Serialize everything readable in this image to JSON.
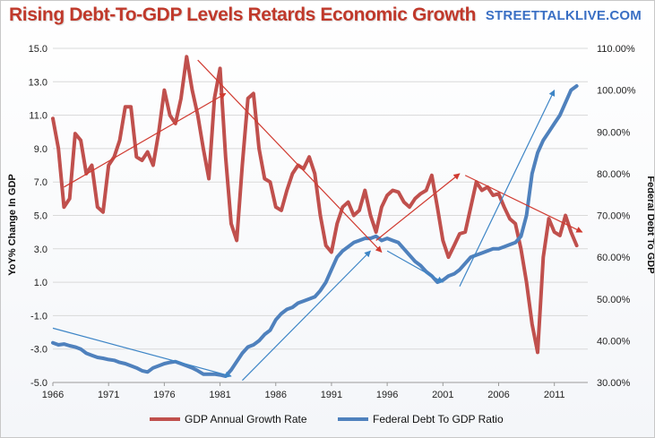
{
  "header": {
    "title": "Rising Debt-To-GDP Levels Retards Economic Growth",
    "brand": "STREETTALKLIVE.COM"
  },
  "chart_data": {
    "type": "line",
    "title": "Rising Debt-To-GDP Levels Retards Economic Growth",
    "ylabel_left": "YoY% Change In GDP",
    "ylabel_right": "Federal Debt To GDP",
    "xlim": [
      1966,
      2014
    ],
    "ylim_left": [
      -5,
      15
    ],
    "ylim_right": [
      30,
      110
    ],
    "x_ticks": [
      "1966",
      "1971",
      "1976",
      "1981",
      "1986",
      "1991",
      "1996",
      "2001",
      "2006",
      "2011"
    ],
    "y_left_ticks": [
      "-5.0",
      "-3.0",
      "-1.0",
      "1.0",
      "3.0",
      "5.0",
      "7.0",
      "9.0",
      "11.0",
      "13.0",
      "15.0"
    ],
    "y_right_ticks": [
      "30.00%",
      "40.00%",
      "50.00%",
      "60.00%",
      "70.00%",
      "80.00%",
      "90.00%",
      "100.00%",
      "110.00%"
    ],
    "grid": "horizontal",
    "legend_position": "bottom",
    "colors": {
      "gdp": "#c0504d",
      "debt": "#4f81bd",
      "gdp_trend": "#d03a30",
      "debt_trend": "#3d85c6"
    },
    "series": [
      {
        "name": "GDP Annual Growth Rate",
        "axis": "left",
        "x": [
          1966,
          1966.5,
          1967,
          1967.5,
          1968,
          1968.5,
          1969,
          1969.5,
          1970,
          1970.5,
          1971,
          1971.5,
          1972,
          1972.5,
          1973,
          1973.5,
          1974,
          1974.5,
          1975,
          1975.5,
          1976,
          1976.5,
          1977,
          1977.5,
          1978,
          1978.5,
          1979,
          1979.5,
          1980,
          1980.5,
          1981,
          1981.5,
          1982,
          1982.5,
          1983,
          1983.5,
          1984,
          1984.5,
          1985,
          1985.5,
          1986,
          1986.5,
          1987,
          1987.5,
          1988,
          1988.5,
          1989,
          1989.5,
          1990,
          1990.5,
          1991,
          1991.5,
          1992,
          1992.5,
          1993,
          1993.5,
          1994,
          1994.5,
          1995,
          1995.5,
          1996,
          1996.5,
          1997,
          1997.5,
          1998,
          1998.5,
          1999,
          1999.5,
          2000,
          2000.5,
          2001,
          2001.5,
          2002,
          2002.5,
          2003,
          2003.5,
          2004,
          2004.5,
          2005,
          2005.5,
          2006,
          2006.5,
          2007,
          2007.5,
          2008,
          2008.5,
          2009,
          2009.5,
          2010,
          2010.5,
          2011,
          2011.5,
          2012,
          2012.5,
          2013
        ],
        "values": [
          10.8,
          9.0,
          5.5,
          6.0,
          9.9,
          9.5,
          7.5,
          8.0,
          5.5,
          5.2,
          8.0,
          8.5,
          9.5,
          11.5,
          11.5,
          8.5,
          8.3,
          8.8,
          8.0,
          10.0,
          12.5,
          11.0,
          10.5,
          12.0,
          14.5,
          12.5,
          11.0,
          9.0,
          7.2,
          12.0,
          13.8,
          8.5,
          4.5,
          3.5,
          8.0,
          12.0,
          12.3,
          9.0,
          7.2,
          7.0,
          5.5,
          5.3,
          6.5,
          7.5,
          8.0,
          7.8,
          8.5,
          7.5,
          5.0,
          3.2,
          2.8,
          4.5,
          5.5,
          5.8,
          5.0,
          5.3,
          6.5,
          5.0,
          4.0,
          5.5,
          6.2,
          6.5,
          6.4,
          5.8,
          5.5,
          6.0,
          6.3,
          6.5,
          7.4,
          5.5,
          3.5,
          2.5,
          3.2,
          3.9,
          4.0,
          5.5,
          7.0,
          6.5,
          6.7,
          6.2,
          6.3,
          5.5,
          4.8,
          4.5,
          3.0,
          1.0,
          -1.5,
          -3.2,
          2.5,
          4.8,
          4.0,
          3.8,
          5.0,
          4.0,
          3.2
        ]
      },
      {
        "name": "Federal Debt To GDP Ratio",
        "axis": "right",
        "x": [
          1966,
          1966.5,
          1967,
          1967.5,
          1968,
          1968.5,
          1969,
          1969.5,
          1970,
          1970.5,
          1971,
          1971.5,
          1972,
          1972.5,
          1973,
          1973.5,
          1974,
          1974.5,
          1975,
          1975.5,
          1976,
          1976.5,
          1977,
          1977.5,
          1978,
          1978.5,
          1979,
          1979.5,
          1980,
          1980.5,
          1981,
          1981.5,
          1982,
          1982.5,
          1983,
          1983.5,
          1984,
          1984.5,
          1985,
          1985.5,
          1986,
          1986.5,
          1987,
          1987.5,
          1988,
          1988.5,
          1989,
          1989.5,
          1990,
          1990.5,
          1991,
          1991.5,
          1992,
          1992.5,
          1993,
          1993.5,
          1994,
          1994.5,
          1995,
          1995.5,
          1996,
          1996.5,
          1997,
          1997.5,
          1998,
          1998.5,
          1999,
          1999.5,
          2000,
          2000.5,
          2001,
          2001.5,
          2002,
          2002.5,
          2003,
          2003.5,
          2004,
          2004.5,
          2005,
          2005.5,
          2006,
          2006.5,
          2007,
          2007.5,
          2008,
          2008.5,
          2009,
          2009.5,
          2010,
          2010.5,
          2011,
          2011.5,
          2012,
          2012.5,
          2013
        ],
        "values": [
          39.5,
          39.0,
          39.2,
          38.8,
          38.5,
          38.0,
          37.0,
          36.5,
          36.0,
          35.8,
          35.5,
          35.3,
          34.8,
          34.5,
          34.0,
          33.5,
          32.8,
          32.5,
          33.5,
          34.0,
          34.5,
          34.8,
          35.0,
          34.5,
          34.0,
          33.5,
          32.8,
          32.0,
          32.0,
          32.0,
          31.8,
          31.5,
          33.0,
          35.0,
          37.0,
          38.5,
          39.0,
          40.0,
          41.5,
          42.5,
          45.0,
          46.5,
          47.5,
          48.0,
          49.0,
          49.5,
          50.0,
          50.5,
          52.0,
          54.0,
          57.0,
          60.0,
          61.5,
          62.5,
          63.5,
          64.0,
          64.5,
          64.5,
          65.0,
          64.0,
          64.5,
          64.0,
          63.5,
          62.0,
          60.5,
          59.0,
          58.0,
          56.5,
          55.5,
          54.0,
          54.5,
          55.5,
          56.0,
          57.0,
          58.5,
          60.0,
          60.5,
          61.0,
          61.5,
          62.0,
          62.0,
          62.5,
          63.0,
          63.5,
          65.0,
          70.0,
          80.0,
          85.0,
          88.0,
          90.0,
          92.0,
          94.0,
          97.0,
          100.0,
          101.0
        ]
      }
    ],
    "trendlines": [
      {
        "series": "GDP Annual Growth Rate",
        "from": [
          1967,
          6.7
        ],
        "to": [
          1981.5,
          12.3
        ]
      },
      {
        "series": "GDP Annual Growth Rate",
        "from": [
          1979,
          14.3
        ],
        "to": [
          1995.5,
          2.8
        ]
      },
      {
        "series": "GDP Annual Growth Rate",
        "from": [
          1995,
          3.5
        ],
        "to": [
          2002.5,
          7.5
        ]
      },
      {
        "series": "GDP Annual Growth Rate",
        "from": [
          2003,
          7.4
        ],
        "to": [
          2013.5,
          4.0
        ]
      },
      {
        "series": "Federal Debt To GDP Ratio",
        "from": [
          1966,
          43.0
        ],
        "to": [
          1982,
          31.5
        ]
      },
      {
        "series": "Federal Debt To GDP Ratio",
        "from": [
          1983,
          30.5
        ],
        "to": [
          1994.5,
          61.5
        ]
      },
      {
        "series": "Federal Debt To GDP Ratio",
        "from": [
          1996,
          61.5
        ],
        "to": [
          2001,
          54.0
        ]
      },
      {
        "series": "Federal Debt To GDP Ratio",
        "from": [
          2002.5,
          53.0
        ],
        "to": [
          2011,
          100.0
        ]
      }
    ]
  }
}
